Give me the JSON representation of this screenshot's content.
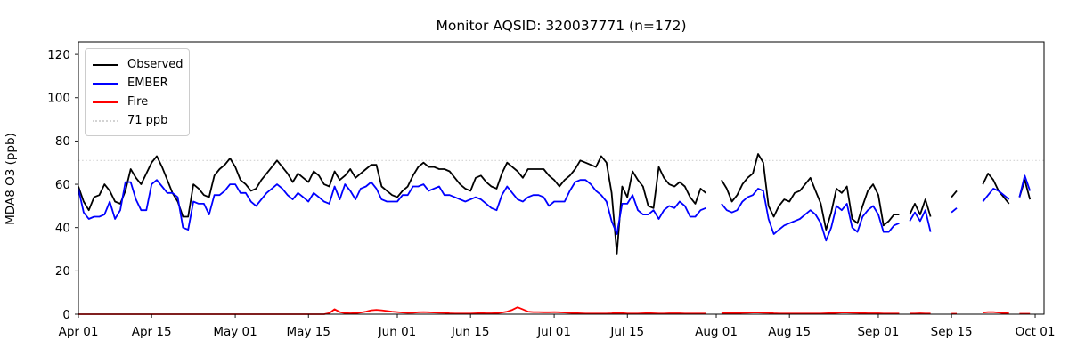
{
  "chart_data": {
    "type": "line",
    "title": "Monitor AQSID: 320037771 (n=172)",
    "xlabel": "",
    "ylabel": "MDA8 O3 (ppb)",
    "n_points": 172,
    "ylim": [
      0,
      125.8
    ],
    "y_ticks": [
      0,
      20,
      40,
      60,
      80,
      100,
      120
    ],
    "x_start_day": 0,
    "x_end_day": 184.7,
    "x_ticks": [
      {
        "label": "Apr 01",
        "day": 0
      },
      {
        "label": "Apr 15",
        "day": 14
      },
      {
        "label": "May 01",
        "day": 30
      },
      {
        "label": "May 15",
        "day": 44
      },
      {
        "label": "Jun 01",
        "day": 61
      },
      {
        "label": "Jun 15",
        "day": 75
      },
      {
        "label": "Jul 01",
        "day": 91
      },
      {
        "label": "Jul 15",
        "day": 105
      },
      {
        "label": "Aug 01",
        "day": 122
      },
      {
        "label": "Aug 15",
        "day": 136
      },
      {
        "label": "Sep 01",
        "day": 153
      },
      {
        "label": "Sep 15",
        "day": 167
      },
      {
        "label": "Oct 01",
        "day": 183
      }
    ],
    "threshold": {
      "value": 71,
      "label": "71 ppb",
      "color": "#d3d3d3",
      "style": "dotted"
    },
    "legend_position": "upper-left",
    "grid": false,
    "series": [
      {
        "name": "Observed",
        "color": "#000000",
        "values": [
          59,
          52,
          48,
          54,
          55,
          60,
          57,
          52,
          51,
          57,
          67,
          63,
          60,
          65,
          70,
          73,
          68,
          62,
          56,
          52,
          45,
          45,
          60,
          58,
          55,
          54,
          64,
          67,
          69,
          72,
          68,
          62,
          60,
          57,
          58,
          62,
          65,
          68,
          71,
          68,
          65,
          61,
          65,
          63,
          61,
          66,
          64,
          60,
          59,
          66,
          62,
          64,
          67,
          63,
          65,
          67,
          69,
          69,
          59,
          57,
          55,
          54,
          57,
          59,
          64,
          68,
          70,
          68,
          68,
          67,
          67,
          66,
          63,
          60,
          58,
          57,
          63,
          64,
          61,
          59,
          58,
          65,
          70,
          68,
          66,
          63,
          67,
          67,
          67,
          67,
          64,
          62,
          59,
          62,
          64,
          67,
          71,
          70,
          69,
          68,
          73,
          70,
          56,
          28,
          59,
          54,
          66,
          62,
          59,
          50,
          49,
          68,
          63,
          60,
          59,
          61,
          59,
          54,
          51,
          58,
          56,
          null,
          null,
          62,
          58,
          52,
          55,
          60,
          63,
          65,
          74,
          70,
          50,
          45,
          50,
          53,
          52,
          56,
          57,
          60,
          63,
          57,
          51,
          39,
          47,
          58,
          56,
          59,
          44,
          42,
          50,
          57,
          60,
          55,
          41,
          43,
          46,
          46,
          null,
          46,
          51,
          46,
          53,
          45,
          null,
          null,
          null,
          54,
          57,
          null,
          null,
          null,
          null,
          60,
          65,
          62,
          57,
          54,
          51,
          null,
          54,
          62,
          53,
          null
        ]
      },
      {
        "name": "EMBER",
        "color": "#0000ff",
        "values": [
          58,
          47,
          44,
          45,
          45,
          46,
          52,
          44,
          48,
          61,
          61,
          53,
          48,
          48,
          60,
          62,
          59,
          56,
          56,
          54,
          40,
          39,
          52,
          51,
          51,
          46,
          55,
          55,
          57,
          60,
          60,
          56,
          56,
          52,
          50,
          53,
          56,
          58,
          60,
          58,
          55,
          53,
          56,
          54,
          52,
          56,
          54,
          52,
          51,
          59,
          53,
          60,
          57,
          53,
          58,
          59,
          61,
          58,
          53,
          52,
          52,
          52,
          55,
          55,
          59,
          59,
          60,
          57,
          58,
          59,
          55,
          55,
          54,
          53,
          52,
          53,
          54,
          53,
          51,
          49,
          48,
          55,
          59,
          56,
          53,
          52,
          54,
          55,
          55,
          54,
          50,
          52,
          52,
          52,
          57,
          61,
          62,
          62,
          60,
          57,
          55,
          52,
          43,
          37,
          51,
          51,
          55,
          48,
          46,
          46,
          48,
          44,
          48,
          50,
          49,
          52,
          50,
          45,
          45,
          48,
          49,
          null,
          null,
          51,
          48,
          47,
          48,
          52,
          54,
          55,
          58,
          57,
          44,
          37,
          39,
          41,
          42,
          43,
          44,
          46,
          48,
          46,
          42,
          34,
          40,
          50,
          48,
          51,
          40,
          38,
          45,
          48,
          50,
          46,
          38,
          38,
          41,
          42,
          null,
          43,
          47,
          43,
          48,
          38,
          null,
          null,
          null,
          47,
          49,
          null,
          null,
          null,
          null,
          52,
          55,
          58,
          57,
          55,
          53,
          null,
          54,
          64,
          57,
          null
        ]
      },
      {
        "name": "Fire",
        "color": "#ff0000",
        "values": [
          0,
          0,
          0,
          0,
          0,
          0,
          0,
          0,
          0,
          0,
          0,
          0,
          0,
          0,
          0,
          0,
          0,
          0,
          0,
          0,
          0,
          0,
          0,
          0,
          0,
          0,
          0,
          0,
          0,
          0,
          0,
          0,
          0,
          0,
          0,
          0,
          0,
          0,
          0,
          0,
          0,
          0,
          0,
          0,
          0,
          0,
          0,
          0,
          0.5,
          2.3,
          1.0,
          0.5,
          0.4,
          0.5,
          0.8,
          1.2,
          1.8,
          2.0,
          1.8,
          1.5,
          1.2,
          1.0,
          0.8,
          0.6,
          0.7,
          0.9,
          1.0,
          0.9,
          0.8,
          0.7,
          0.6,
          0.4,
          0.3,
          0.3,
          0.3,
          0.3,
          0.4,
          0.5,
          0.4,
          0.4,
          0.5,
          0.8,
          1.2,
          2.0,
          3.2,
          2.2,
          1.2,
          1.0,
          1.0,
          0.9,
          0.9,
          1.0,
          0.9,
          0.8,
          0.6,
          0.5,
          0.4,
          0.3,
          0.3,
          0.3,
          0.3,
          0.3,
          0.4,
          0.6,
          0.5,
          0.3,
          0.3,
          0.3,
          0.4,
          0.5,
          0.4,
          0.3,
          0.3,
          0.4,
          0.4,
          0.4,
          0.3,
          0.3,
          0.3,
          0.3,
          0.3,
          null,
          null,
          0.4,
          0.5,
          0.5,
          0.5,
          0.6,
          0.7,
          0.8,
          0.8,
          0.7,
          0.6,
          0.4,
          0.3,
          0.3,
          0.3,
          0.3,
          0.3,
          0.3,
          0.3,
          0.3,
          0.3,
          0.4,
          0.5,
          0.6,
          0.8,
          0.8,
          0.7,
          0.6,
          0.5,
          0.4,
          0.4,
          0.4,
          0.3,
          0.3,
          0.3,
          0.3,
          null,
          0.3,
          0.3,
          0.4,
          0.3,
          0.3,
          null,
          null,
          null,
          0.2,
          0.2,
          null,
          null,
          null,
          null,
          0.8,
          1.0,
          1.0,
          0.8,
          0.5,
          0.4,
          null,
          0.2,
          0.2,
          0.2,
          null
        ]
      }
    ],
    "legend_entries": [
      "Observed",
      "EMBER",
      "Fire",
      "71 ppb"
    ]
  }
}
